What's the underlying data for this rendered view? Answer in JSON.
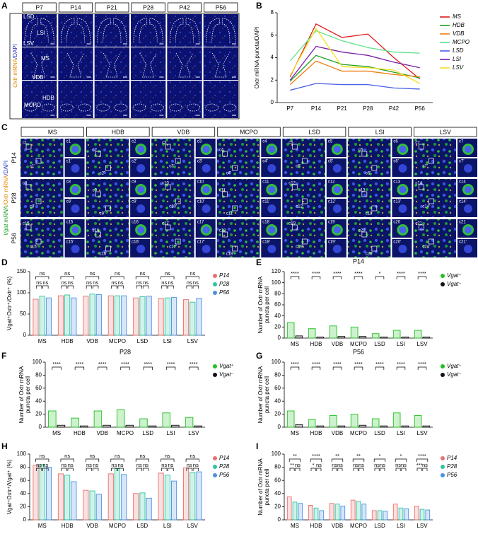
{
  "panel_a": {
    "panel": "A",
    "columns": [
      "P7",
      "P14",
      "P21",
      "P28",
      "P42",
      "P56"
    ],
    "row_label": [
      {
        "text": "Oxtr",
        "color": "#e68a00"
      },
      {
        "text": " mRNA",
        "color": "#e68a00"
      },
      {
        "text": "/DAPI",
        "color": "#2233bb"
      }
    ],
    "regions": [
      "LSD",
      "LSI",
      "LSV",
      "MS",
      "VDB",
      "HDB",
      "MCPO"
    ]
  },
  "panel_c": {
    "panel": "C",
    "columns": [
      "MS",
      "HDB",
      "VDB",
      "MCPO",
      "LSD",
      "LSI",
      "LSV"
    ],
    "rows": [
      "P14",
      "P28",
      "P56"
    ],
    "row_label": [
      {
        "text": "Vgat mRNA",
        "color": "#1a9a1a"
      },
      {
        "text": "/Oxtr mRNA",
        "color": "#e68a00"
      },
      {
        "text": "/DAPI",
        "color": "#2233bb"
      }
    ],
    "c_labels": [
      "c1",
      "c2",
      "c3",
      "c4",
      "c5",
      "c6",
      "c7",
      "c8",
      "c9",
      "c10",
      "c11",
      "c12",
      "c13",
      "c14",
      "c15",
      "c16",
      "c17",
      "c18",
      "c19",
      "c20",
      "c21"
    ],
    "c_prime_labels": [
      "c1'",
      "c2'",
      "c3'",
      "c4'",
      "c5'",
      "c6'",
      "c7'",
      "c8'",
      "c9'",
      "c10'",
      "c11'",
      "c12'",
      "c13'",
      "c14'",
      "c15'",
      "c16'",
      "c17'",
      "c18'",
      "c19'",
      "c20'",
      "c21'"
    ]
  },
  "chart_data": [
    {
      "panel": "B",
      "type": "line",
      "ylabel": "Oxtr mRNA puncta/DAPI",
      "categories": [
        "P7",
        "P14",
        "P21",
        "P28",
        "P42",
        "P56"
      ],
      "ylim": [
        0,
        8
      ],
      "yticks": [
        0,
        2,
        4,
        6,
        8
      ],
      "legend": "right",
      "series": [
        {
          "name": "MS",
          "color": "#e31a1c",
          "values": [
            2.3,
            7.0,
            5.8,
            6.1,
            4.0,
            2.1
          ]
        },
        {
          "name": "HDB",
          "color": "#1e9e1e",
          "values": [
            1.9,
            4.2,
            3.4,
            3.2,
            2.7,
            2.2
          ]
        },
        {
          "name": "VDB",
          "color": "#f07f10",
          "values": [
            1.6,
            3.7,
            2.8,
            2.8,
            2.5,
            2.3
          ]
        },
        {
          "name": "MCPO",
          "color": "#5fe08a",
          "values": [
            3.7,
            6.4,
            5.5,
            4.9,
            4.5,
            4.4
          ]
        },
        {
          "name": "LSD",
          "color": "#4a5ee8",
          "values": [
            1.1,
            1.7,
            1.6,
            1.6,
            1.3,
            1.2
          ]
        },
        {
          "name": "LSI",
          "color": "#7a1fa0",
          "values": [
            2.0,
            5.0,
            4.5,
            4.2,
            3.6,
            3.1
          ]
        },
        {
          "name": "LSV",
          "color": "#f2e020",
          "values": [
            2.4,
            6.6,
            3.2,
            3.1,
            2.9,
            1.7
          ]
        }
      ]
    },
    {
      "panel": "D",
      "type": "bar",
      "ylabel": "Vgat⁺Oxtr⁺/Oxtr⁺ (%)",
      "categories": [
        "MS",
        "HDB",
        "VDB",
        "MCPO",
        "LSD",
        "LSI",
        "LSV"
      ],
      "ylim": [
        0,
        150
      ],
      "yticks": [
        0,
        50,
        100,
        150
      ],
      "legend": "right",
      "series": [
        {
          "name": "P14",
          "color": "#e8716f",
          "values": [
            85,
            93,
            92,
            93,
            88,
            87,
            84
          ]
        },
        {
          "name": "P28",
          "color": "#2ec4a0",
          "values": [
            92,
            95,
            97,
            93,
            91,
            88,
            78
          ]
        },
        {
          "name": "P56",
          "color": "#4a90e2",
          "values": [
            88,
            88,
            96,
            93,
            92,
            89,
            87
          ]
        }
      ],
      "significance": [
        [
          "ns",
          "ns",
          "ns"
        ],
        [
          "ns",
          "ns",
          "ns"
        ],
        [
          "ns",
          "ns",
          "ns"
        ],
        [
          "ns",
          "ns",
          "ns"
        ],
        [
          "ns",
          "ns",
          "ns"
        ],
        [
          "ns",
          "ns",
          "ns"
        ],
        [
          "ns",
          "ns",
          "ns"
        ]
      ]
    },
    {
      "panel": "E",
      "type": "bar",
      "title": "P14",
      "ylabel": [
        "Number of Oxtr mRNA",
        "puncta per cell"
      ],
      "categories": [
        "MS",
        "HDB",
        "VDB",
        "MCPO",
        "LSD",
        "LSI",
        "LSV"
      ],
      "ylim": [
        0,
        120
      ],
      "yticks": [
        0,
        20,
        40,
        60,
        80,
        100,
        120
      ],
      "legend": "right",
      "series": [
        {
          "name": "Vgat⁺",
          "color": "#22c022",
          "values": [
            28,
            17,
            22,
            20,
            8,
            14,
            14
          ]
        },
        {
          "name": "Vgat⁻",
          "color": "#111111",
          "values": [
            4,
            2,
            3,
            3,
            2,
            2,
            2
          ]
        }
      ],
      "significance": [
        [
          "****"
        ],
        [
          "****"
        ],
        [
          "****"
        ],
        [
          "****"
        ],
        [
          "*"
        ],
        [
          "****"
        ],
        [
          "****"
        ]
      ]
    },
    {
      "panel": "F",
      "type": "bar",
      "title": "P28",
      "ylabel": [
        "Number of Oxtr mRNA",
        "puncta per cell"
      ],
      "categories": [
        "MS",
        "HDB",
        "VDB",
        "MCPO",
        "LSD",
        "LSI",
        "LSV"
      ],
      "ylim": [
        0,
        100
      ],
      "yticks": [
        0,
        20,
        40,
        60,
        80,
        100
      ],
      "legend": "right",
      "series": [
        {
          "name": "Vgat⁺",
          "color": "#22c022",
          "values": [
            25,
            14,
            25,
            27,
            13,
            22,
            15
          ]
        },
        {
          "name": "Vgat⁻",
          "color": "#111111",
          "values": [
            3,
            2,
            3,
            3,
            2,
            3,
            2
          ]
        }
      ],
      "significance": [
        [
          "****"
        ],
        [
          "****"
        ],
        [
          "****"
        ],
        [
          "****"
        ],
        [
          "****"
        ],
        [
          "****"
        ],
        [
          "****"
        ]
      ]
    },
    {
      "panel": "G",
      "type": "bar",
      "title": "P56",
      "ylabel": [
        "Number of Oxtr mRNA",
        "puncta per cell"
      ],
      "categories": [
        "MS",
        "HDB",
        "VDB",
        "MCPO",
        "LSD",
        "LSI",
        "LSV"
      ],
      "ylim": [
        0,
        100
      ],
      "yticks": [
        0,
        20,
        40,
        60,
        80,
        100
      ],
      "legend": "right",
      "series": [
        {
          "name": "Vgat⁺",
          "color": "#22c022",
          "values": [
            25,
            12,
            18,
            20,
            13,
            22,
            18
          ]
        },
        {
          "name": "Vgat⁻",
          "color": "#111111",
          "values": [
            4,
            2,
            2,
            3,
            2,
            2,
            2
          ]
        }
      ],
      "significance": [
        [
          "****"
        ],
        [
          "****"
        ],
        [
          "****"
        ],
        [
          "****"
        ],
        [
          "****"
        ],
        [
          "****"
        ],
        [
          "****"
        ]
      ]
    },
    {
      "panel": "H",
      "type": "bar",
      "ylabel": "Vgat⁺Oxtr⁺/Vgat⁺ (%)",
      "categories": [
        "MS",
        "HDB",
        "VDB",
        "MCPO",
        "LSD",
        "LSI",
        "LSV"
      ],
      "ylim": [
        0,
        100
      ],
      "yticks": [
        0,
        20,
        40,
        60,
        80,
        100
      ],
      "legend": "right",
      "series": [
        {
          "name": "P14",
          "color": "#e8716f",
          "values": [
            83,
            70,
            45,
            70,
            40,
            71,
            79
          ]
        },
        {
          "name": "P28",
          "color": "#2ec4a0",
          "values": [
            84,
            68,
            44,
            78,
            41,
            68,
            72
          ]
        },
        {
          "name": "P56",
          "color": "#4a90e2",
          "values": [
            80,
            58,
            39,
            69,
            33,
            59,
            73
          ]
        }
      ],
      "significance": [
        [
          "ns",
          "ns",
          "ns"
        ],
        [
          "ns",
          "ns",
          "ns"
        ],
        [
          "ns",
          "ns",
          "ns"
        ],
        [
          "ns",
          "ns",
          "ns"
        ],
        [
          "ns",
          "ns",
          "ns"
        ],
        [
          "ns",
          "ns",
          "ns"
        ],
        [
          "ns",
          "ns",
          "ns"
        ]
      ]
    },
    {
      "panel": "I",
      "type": "bar",
      "ylabel": [
        "Number of Oxtr mRNA",
        "puncta per cell"
      ],
      "categories": [
        "MS",
        "HDB",
        "VDB",
        "MCPO",
        "LSD",
        "LSI",
        "LSV"
      ],
      "ylim": [
        0,
        100
      ],
      "yticks": [
        0,
        20,
        40,
        60,
        80,
        100
      ],
      "legend": "right",
      "series": [
        {
          "name": "P14",
          "color": "#e8716f",
          "values": [
            35,
            22,
            25,
            30,
            14,
            24,
            21
          ]
        },
        {
          "name": "P28",
          "color": "#2ec4a0",
          "values": [
            27,
            18,
            24,
            28,
            14,
            18,
            16
          ]
        },
        {
          "name": "P56",
          "color": "#4a90e2",
          "values": [
            25,
            14,
            21,
            24,
            13,
            17,
            15
          ]
        }
      ],
      "significance": [
        [
          "**",
          "**",
          "ns"
        ],
        [
          "****",
          "*",
          "ns"
        ],
        [
          "**",
          "ns",
          "ns"
        ],
        [
          "**",
          "ns",
          "ns"
        ],
        [
          "*",
          "ns",
          "ns"
        ],
        [
          "*",
          "ns",
          "ns"
        ],
        [
          "****",
          "***",
          "ns"
        ]
      ]
    }
  ]
}
